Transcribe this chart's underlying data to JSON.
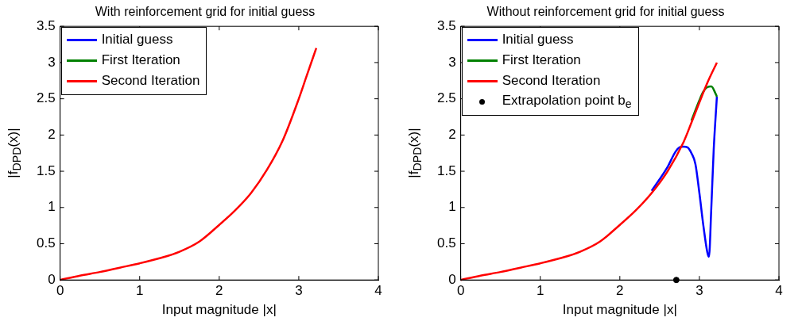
{
  "chart_data": [
    {
      "type": "line",
      "title": "With reinforcement grid for initial guess",
      "xlabel": "Input magnitude |x|",
      "ylabel": "|f$_{DPD}$(x)|",
      "xlim": [
        0,
        4
      ],
      "ylim": [
        0,
        3.5
      ],
      "xticks": [
        0,
        1,
        2,
        3,
        4
      ],
      "yticks": [
        0,
        0.5,
        1,
        1.5,
        2,
        2.5,
        3,
        3.5
      ],
      "grid": false,
      "legend": "top left",
      "series": [
        {
          "name": "Initial guess",
          "color": "#0000ff"
        },
        {
          "name": "First Iteration",
          "color": "#008000"
        },
        {
          "name": "Second Iteration",
          "color": "#ff0000",
          "x": [
            0,
            0.25,
            0.5,
            0.75,
            1,
            1.25,
            1.5,
            1.75,
            2,
            2.2,
            2.4,
            2.6,
            2.8,
            3,
            3.1,
            3.22
          ],
          "values": [
            0,
            0.06,
            0.11,
            0.17,
            0.23,
            0.3,
            0.39,
            0.53,
            0.76,
            0.96,
            1.2,
            1.52,
            1.93,
            2.5,
            2.82,
            3.2
          ]
        }
      ]
    },
    {
      "type": "line",
      "title": "Without reinforcement grid for initial guess",
      "xlabel": "Input magnitude |x|",
      "ylabel": "|f$_{DPD}$(x)|",
      "xlim": [
        0,
        4
      ],
      "ylim": [
        0,
        3.5
      ],
      "xticks": [
        0,
        1,
        2,
        3,
        4
      ],
      "yticks": [
        0,
        0.5,
        1,
        1.5,
        2,
        2.5,
        3,
        3.5
      ],
      "grid": false,
      "legend": "top left",
      "series": [
        {
          "name": "Initial guess",
          "color": "#0000ff",
          "x": [
            2.4,
            2.6,
            2.7,
            2.75,
            2.8,
            2.85,
            2.9,
            2.95,
            3,
            3.05,
            3.1,
            3.12,
            3.15,
            3.18,
            3.22
          ],
          "values": [
            1.23,
            1.56,
            1.77,
            1.83,
            1.84,
            1.83,
            1.75,
            1.6,
            1.2,
            0.75,
            0.38,
            0.32,
            1.0,
            1.8,
            2.53
          ]
        },
        {
          "name": "First Iteration",
          "color": "#008000",
          "x": [
            2.9,
            3,
            3.05,
            3.1,
            3.15,
            3.2,
            3.22
          ],
          "values": [
            2.2,
            2.48,
            2.6,
            2.66,
            2.67,
            2.58,
            2.53
          ]
        },
        {
          "name": "Second Iteration",
          "color": "#ff0000",
          "x": [
            0,
            0.25,
            0.5,
            0.75,
            1,
            1.25,
            1.5,
            1.75,
            2,
            2.2,
            2.4,
            2.6,
            2.8,
            2.9,
            3,
            3.1,
            3.22
          ],
          "values": [
            0,
            0.06,
            0.11,
            0.17,
            0.23,
            0.3,
            0.39,
            0.53,
            0.76,
            0.96,
            1.2,
            1.5,
            1.9,
            2.17,
            2.45,
            2.72,
            3.0
          ]
        },
        {
          "name": "Extrapolation point b$_{e}$",
          "type": "scatter",
          "marker": "circle",
          "color": "#000000",
          "x": [
            2.71
          ],
          "values": [
            0
          ]
        }
      ]
    }
  ]
}
